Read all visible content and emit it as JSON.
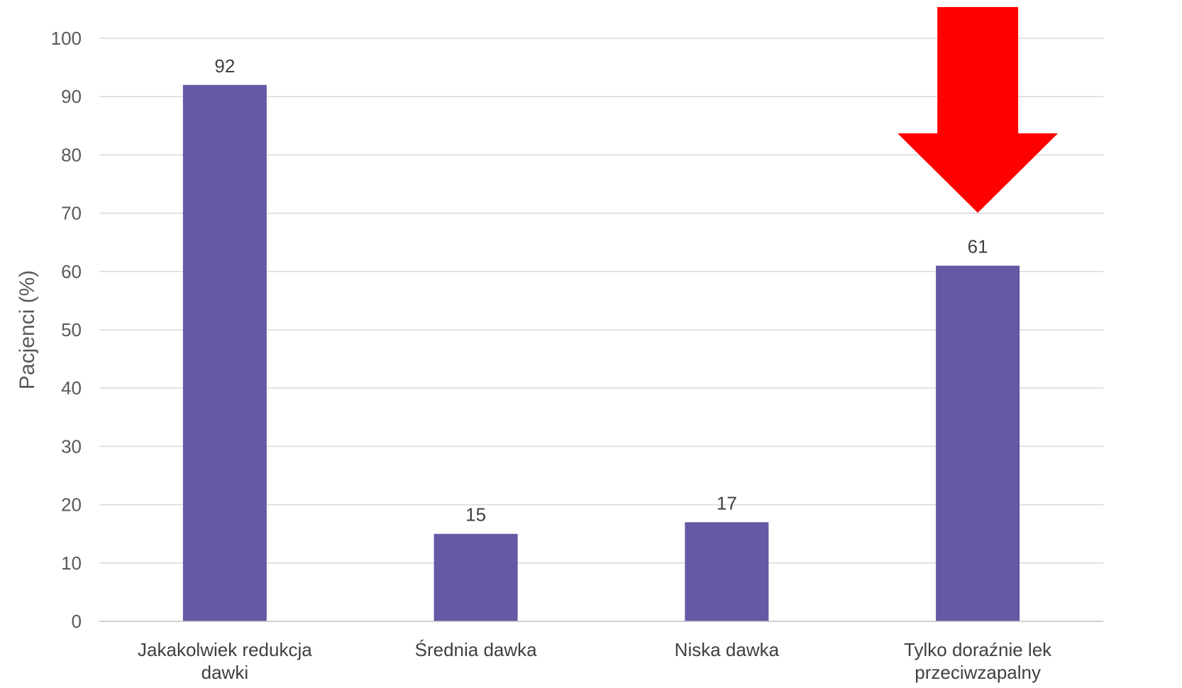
{
  "chart_data": {
    "type": "bar",
    "categories": [
      [
        "Jakakolwiek redukcja",
        "dawki"
      ],
      [
        "Średnia dawka"
      ],
      [
        "Niska dawka"
      ],
      [
        "Tylko doraźnie lek",
        "przeciwzapalny"
      ]
    ],
    "values": [
      92,
      15,
      17,
      61
    ],
    "data_labels": [
      "92",
      "15",
      "17",
      "61"
    ],
    "ylabel": "Pacjenci (%)",
    "ylim": [
      0,
      100
    ],
    "yticks": [
      0,
      10,
      20,
      30,
      40,
      50,
      60,
      70,
      80,
      90,
      100
    ],
    "grid": true,
    "bar_color": "#6558A5",
    "annotation": {
      "type": "down-arrow",
      "category_index": 3,
      "color": "#FF0000"
    }
  }
}
